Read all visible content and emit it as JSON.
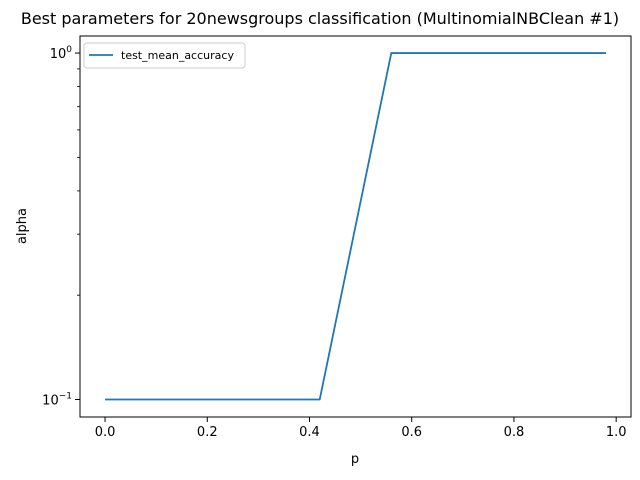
{
  "chart_data": {
    "type": "line",
    "title": "Best parameters for 20newsgroups classification (MultinomialNBClean #1)",
    "xlabel": "p",
    "ylabel": "alpha",
    "xlim": [
      -0.049,
      1.029
    ],
    "ylim": [
      0.089,
      1.12
    ],
    "yscale": "log",
    "grid": false,
    "legend_position": "upper left",
    "x_ticks": [
      0.0,
      0.2,
      0.4,
      0.6,
      0.8,
      1.0
    ],
    "x_tick_labels": [
      "0.0",
      "0.2",
      "0.4",
      "0.6",
      "0.8",
      "1.0"
    ],
    "y_ticks": [
      0.1,
      1
    ],
    "y_tick_base": "10",
    "y_tick_exponents": [
      "−1",
      "0"
    ],
    "series": [
      {
        "name": "test_mean_accuracy",
        "color": "#1f77b4",
        "x": [
          0.0,
          0.42,
          0.56,
          0.98
        ],
        "y": [
          0.1,
          0.1,
          1.0,
          1.0
        ]
      }
    ]
  }
}
